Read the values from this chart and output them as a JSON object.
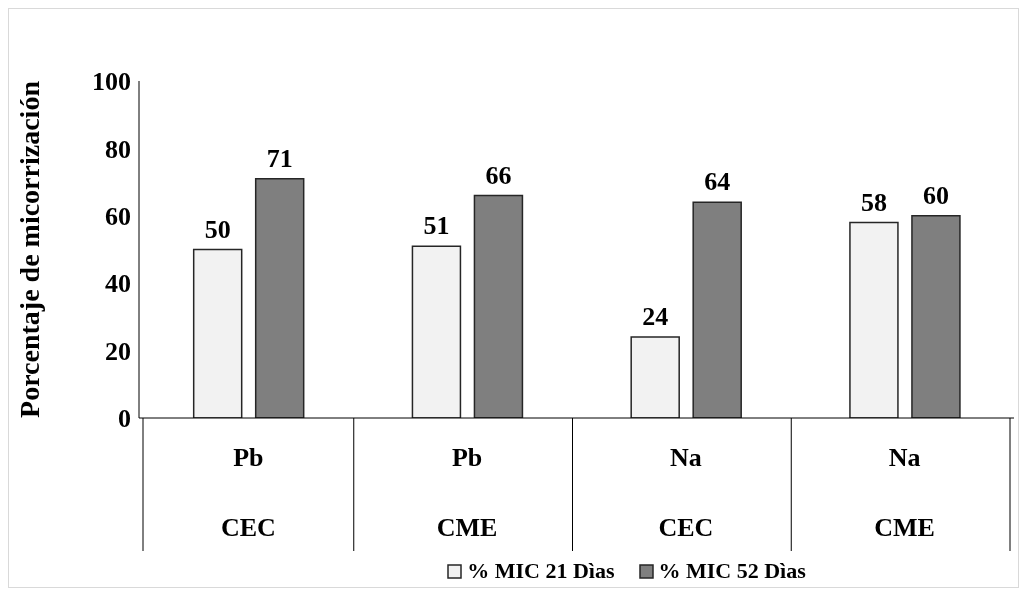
{
  "chart_data": {
    "type": "bar",
    "ylabel": "Porcentaje de micorrización",
    "categories": [
      "Pb\nCEC",
      "Pb\nCME",
      "Na\nCEC",
      "Na\nCME"
    ],
    "series": [
      {
        "name": "% MIC 21 Dìas",
        "color": "#f2f2f2",
        "values": [
          50,
          51,
          24,
          58
        ]
      },
      {
        "name": "% MIC 52 Dìas",
        "color": "#7f7f7f",
        "values": [
          71,
          66,
          64,
          60
        ]
      }
    ],
    "ylim": [
      0,
      100
    ],
    "yticks": [
      0,
      20,
      40,
      60,
      80,
      100
    ],
    "grid": false,
    "legend": "bottom",
    "data_labels": true
  }
}
